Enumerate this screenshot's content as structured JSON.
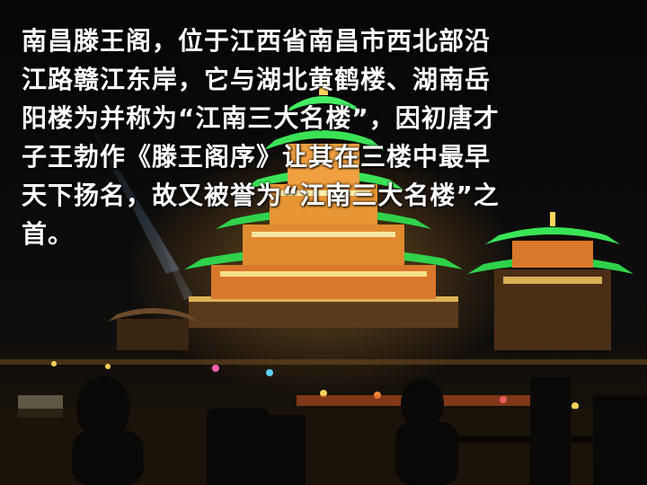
{
  "slide": {
    "caption": "南昌滕王阁，位于江西省南昌市西北部沿\n江路赣江东岸，它与湖北黄鹤楼、湖南岳\n阳楼为并称为“江南三大名楼”，因初唐才\n子王勃作《滕王阁序》让其在三楼中最早\n天下扬名，故又被誉为“江南三大名楼”之\n首。"
  },
  "photo": {
    "subject": "tengwang-pavilion-night-photo",
    "colors": {
      "roof_green": "#2fd24a",
      "light_gold": "#ffc94a",
      "wall_orange": "#d9782a",
      "sky": "#080808"
    }
  }
}
